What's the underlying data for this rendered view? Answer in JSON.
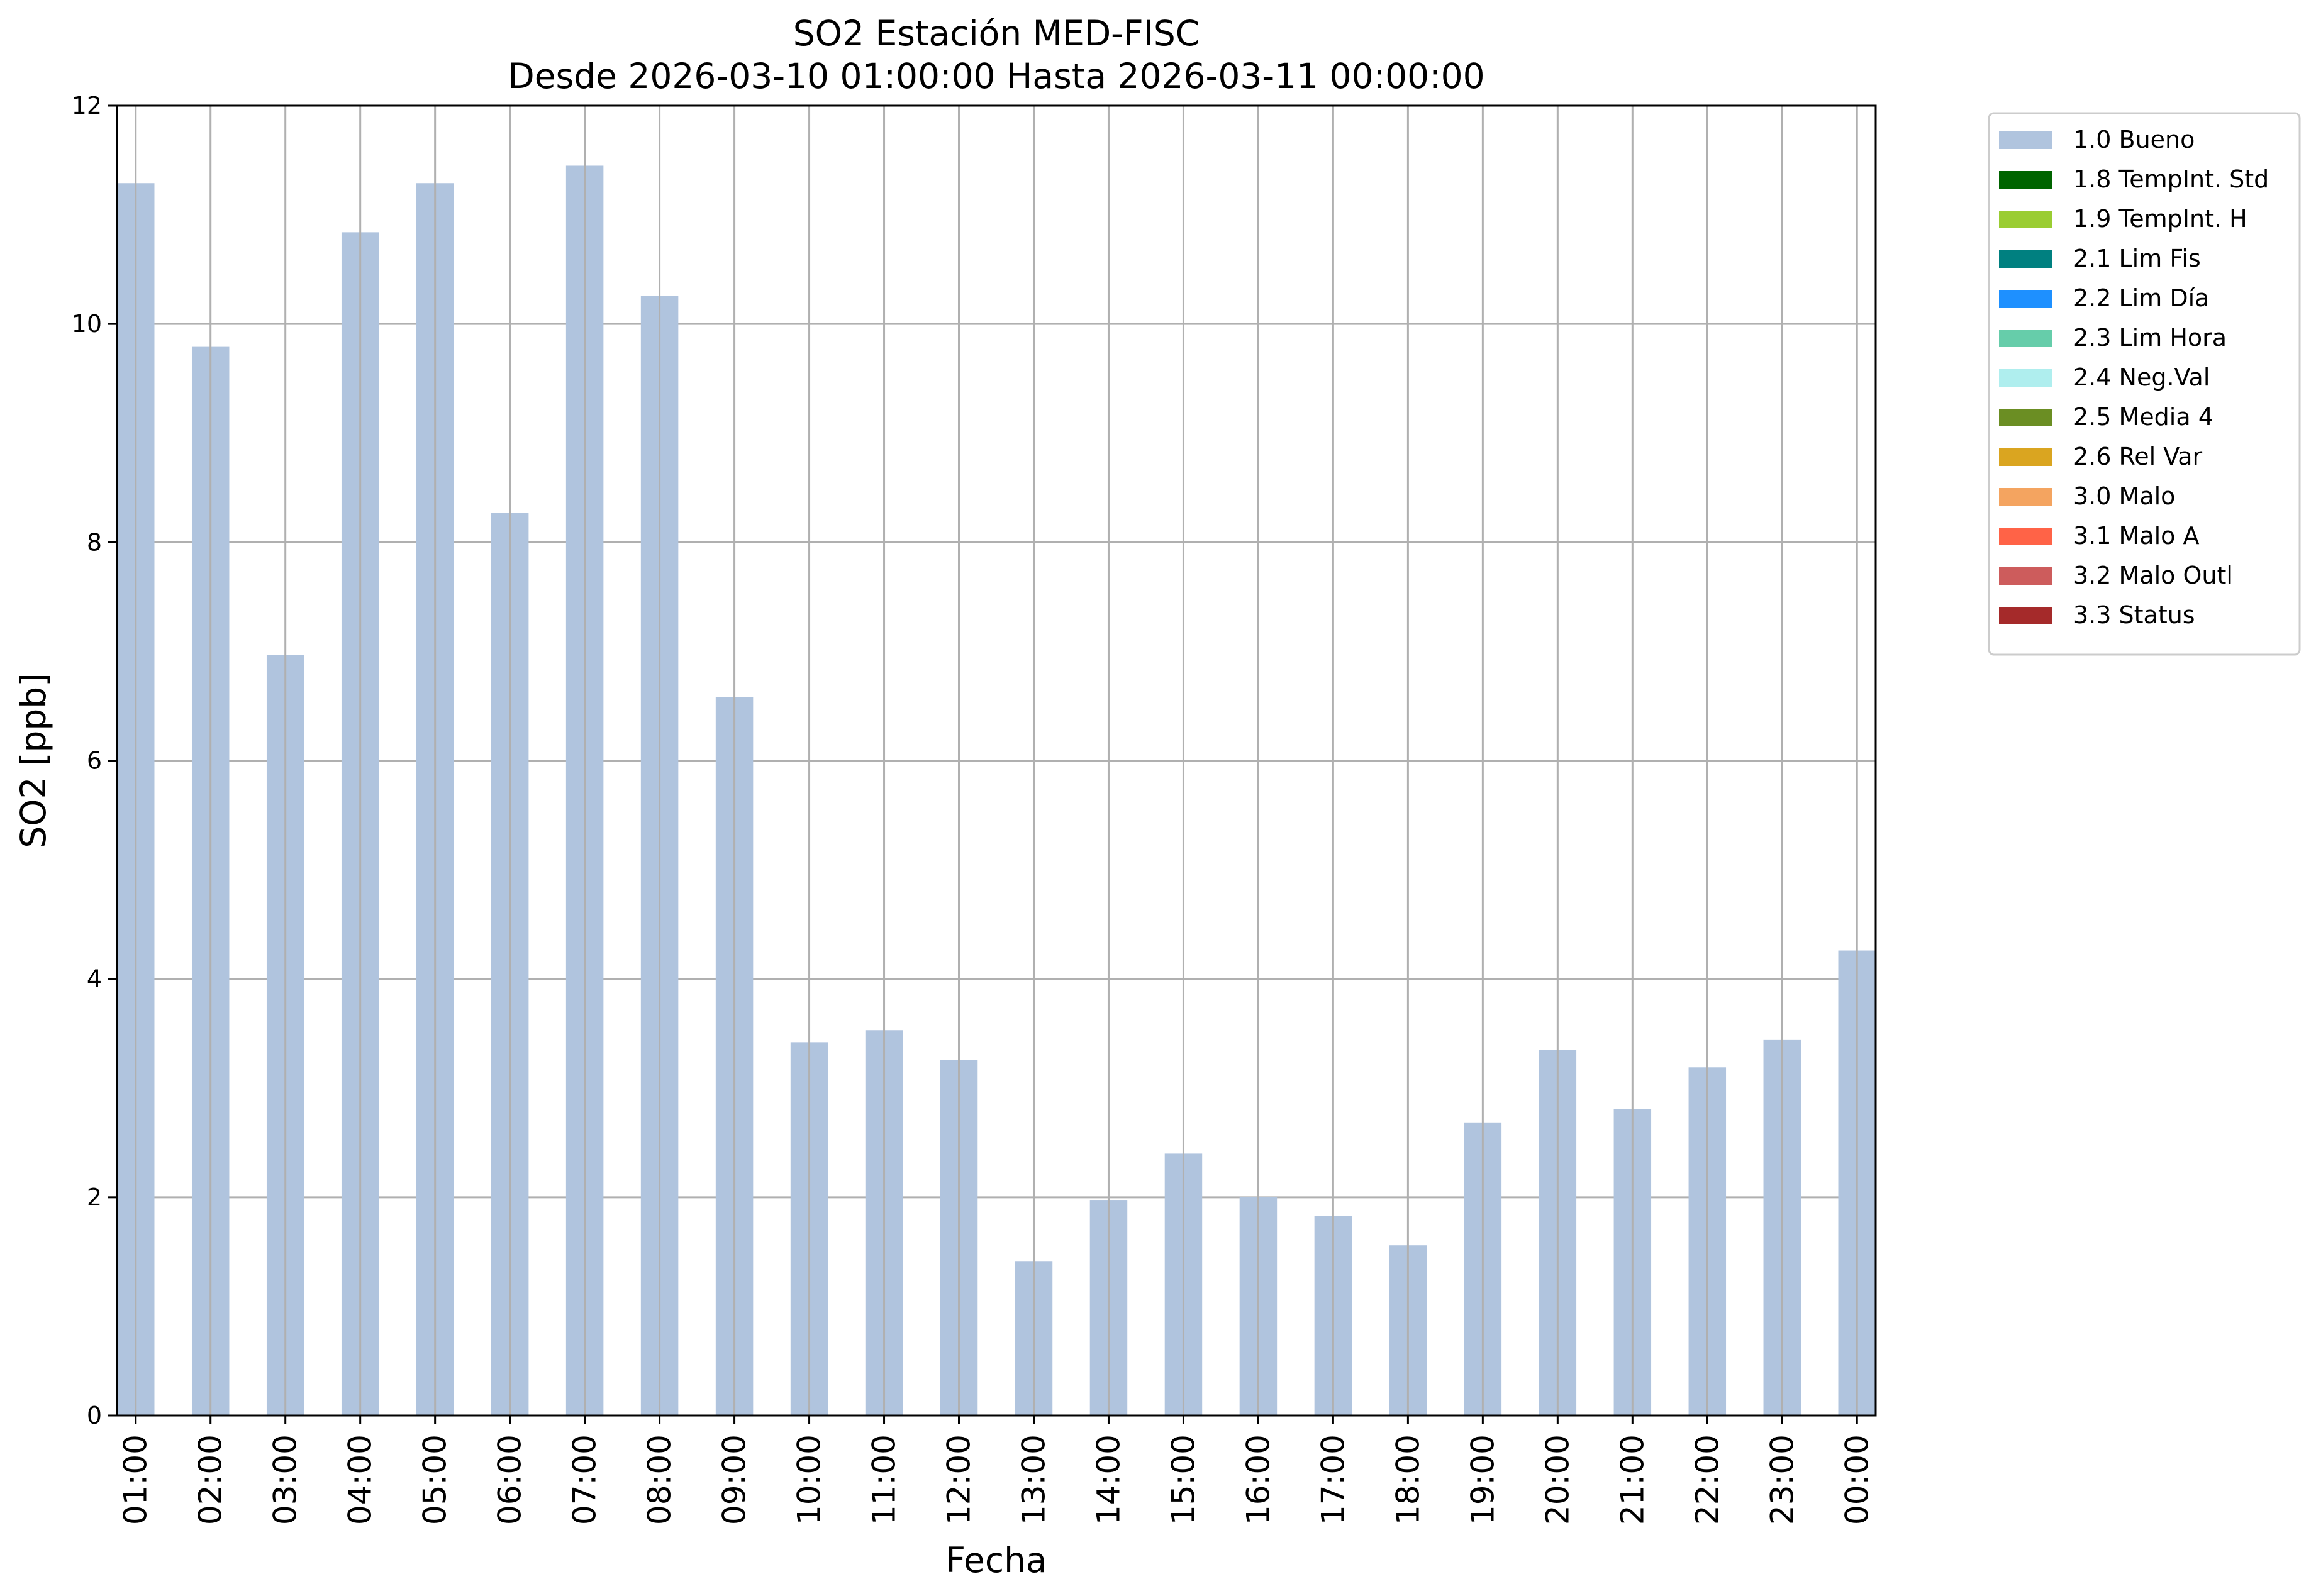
{
  "chart_data": {
    "type": "bar",
    "title": [
      "SO2 Estación MED-FISC",
      "Desde 2026-03-10 01:00:00 Hasta 2026-03-11 00:00:00"
    ],
    "xlabel": "Fecha",
    "ylabel": "SO2 [ppb]",
    "ylim": [
      0,
      12
    ],
    "yticks": [
      "0",
      "2",
      "4",
      "6",
      "8",
      "10",
      "12"
    ],
    "grid": true,
    "legend_position": "outside-top-right",
    "categories": [
      "01:00",
      "02:00",
      "03:00",
      "04:00",
      "05:00",
      "06:00",
      "07:00",
      "08:00",
      "09:00",
      "10:00",
      "11:00",
      "12:00",
      "13:00",
      "14:00",
      "15:00",
      "16:00",
      "17:00",
      "18:00",
      "19:00",
      "20:00",
      "21:00",
      "22:00",
      "23:00",
      "00:00"
    ],
    "series": [
      {
        "name": "1.0 Bueno",
        "color": "#b0c4de",
        "values": [
          11.29,
          9.79,
          6.97,
          10.84,
          11.29,
          8.27,
          11.45,
          10.26,
          6.58,
          3.42,
          3.53,
          3.26,
          1.41,
          1.97,
          2.4,
          2.0,
          1.83,
          1.56,
          2.68,
          3.35,
          2.81,
          3.19,
          3.44,
          4.26
        ]
      }
    ],
    "legend": [
      {
        "label": "1.0 Bueno",
        "color": "#b0c4de"
      },
      {
        "label": "1.8 TempInt. Std",
        "color": "#006400"
      },
      {
        "label": "1.9 TempInt. H",
        "color": "#9acd32"
      },
      {
        "label": "2.1 Lim Fis",
        "color": "#008080"
      },
      {
        "label": "2.2 Lim Día",
        "color": "#1e90ff"
      },
      {
        "label": "2.3 Lim Hora",
        "color": "#66cdaa"
      },
      {
        "label": "2.4 Neg.Val",
        "color": "#afeeee"
      },
      {
        "label": "2.5 Media 4",
        "color": "#6b8e23"
      },
      {
        "label": "2.6 Rel Var",
        "color": "#daa520"
      },
      {
        "label": "3.0 Malo",
        "color": "#f4a460"
      },
      {
        "label": "3.1 Malo A",
        "color": "#ff6347"
      },
      {
        "label": "3.2 Malo Outl",
        "color": "#cd5c5c"
      },
      {
        "label": "3.3 Status",
        "color": "#a52a2a"
      }
    ]
  }
}
